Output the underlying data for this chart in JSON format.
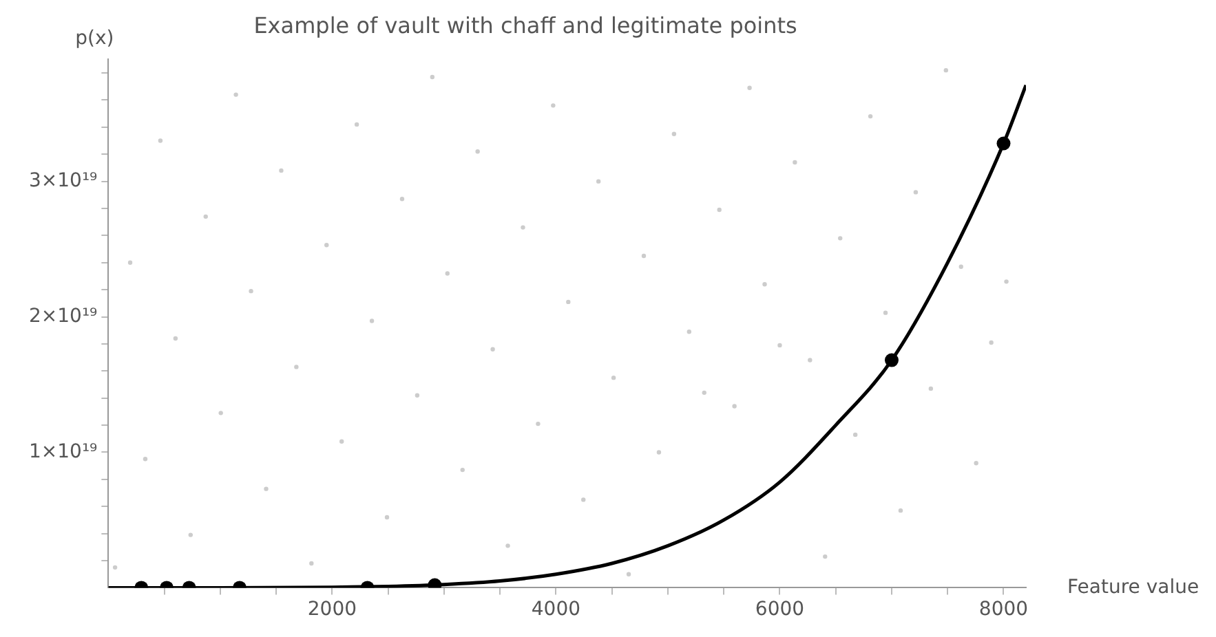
{
  "chart_data": {
    "type": "scatter",
    "title": "Example of vault with chaff and legitimate points",
    "xlabel": "Feature value",
    "ylabel": "p(x)",
    "xlim": [
      0,
      8200
    ],
    "ylim": [
      0,
      3.9e+19
    ],
    "xticks": [
      {
        "value": 500,
        "label": null
      },
      {
        "value": 1000,
        "label": null
      },
      {
        "value": 1500,
        "label": null
      },
      2000,
      {
        "value": 2500,
        "label": null
      },
      {
        "value": 3000,
        "label": null
      },
      {
        "value": 3500,
        "label": null
      },
      4000,
      {
        "value": 4500,
        "label": null
      },
      {
        "value": 5000,
        "label": null
      },
      {
        "value": 5500,
        "label": null
      },
      6000,
      {
        "value": 6500,
        "label": null
      },
      {
        "value": 7000,
        "label": null
      },
      {
        "value": 7500,
        "label": null
      },
      8000
    ],
    "yticks": [
      {
        "value": 2e+18,
        "label": null
      },
      {
        "value": 4e+18,
        "label": null
      },
      {
        "value": 6e+18,
        "label": null
      },
      {
        "value": 8e+18,
        "label": null
      },
      {
        "value": 1e+19,
        "label": "1×10¹⁹"
      },
      {
        "value": 1.2e+19,
        "label": null
      },
      {
        "value": 1.4e+19,
        "label": null
      },
      {
        "value": 1.6e+19,
        "label": null
      },
      {
        "value": 1.8e+19,
        "label": null
      },
      {
        "value": 2e+19,
        "label": "2×10¹⁹"
      },
      {
        "value": 2.2e+19,
        "label": null
      },
      {
        "value": 2.4e+19,
        "label": null
      },
      {
        "value": 2.6e+19,
        "label": null
      },
      {
        "value": 2.8e+19,
        "label": null
      },
      {
        "value": 3e+19,
        "label": "3×10¹⁹"
      },
      {
        "value": 3.2e+19,
        "label": null
      },
      {
        "value": 3.4e+19,
        "label": null
      },
      {
        "value": 3.6e+19,
        "label": null
      },
      {
        "value": 3.8e+19,
        "label": null
      }
    ],
    "grid": false,
    "legend": false,
    "series": [
      {
        "marker": "circle",
        "color": "#cccccc",
        "x": [
          60,
          195,
          330,
          465,
          600,
          735,
          870,
          1005,
          1140,
          1275,
          1410,
          1545,
          1680,
          1815,
          1950,
          2085,
          2220,
          2355,
          2490,
          2625,
          2760,
          2895,
          3030,
          3165,
          3300,
          3435,
          3570,
          3705,
          3840,
          3975,
          4110,
          4245,
          4380,
          4515,
          4650,
          4785,
          4920,
          5055,
          5190,
          5325,
          5460,
          5595,
          5730,
          5865,
          6000,
          6135,
          6270,
          6405,
          6540,
          6675,
          6810,
          6945,
          7080,
          7215,
          7350,
          7485,
          7620,
          7755,
          7890,
          8025
        ],
        "values": [
          1.5e+18,
          2.4e+19,
          9.5e+18,
          3.3e+19,
          1.84e+19,
          3.9e+18,
          2.74e+19,
          1.29e+19,
          3.64e+19,
          2.19e+19,
          7.3e+18,
          3.08e+19,
          1.63e+19,
          1.8e+18,
          2.53e+19,
          1.08e+19,
          3.42e+19,
          1.97e+19,
          5.2e+18,
          2.87e+19,
          1.42e+19,
          3.77e+19,
          2.32e+19,
          8.7e+18,
          3.22e+19,
          1.76e+19,
          3.1e+18,
          2.66e+19,
          1.21e+19,
          3.56e+19,
          2.11e+19,
          6.5e+18,
          3e+19,
          1.55e+19,
          1e+18,
          2.45e+19,
          1e+19,
          3.35e+19,
          1.89e+19,
          1.44e+19,
          2.79e+19,
          1.34e+19,
          3.69e+19,
          2.24e+19,
          1.79e+19,
          3.14e+19,
          1.68e+19,
          2.3e+18,
          2.58e+19,
          1.13e+19,
          3.48e+19,
          2.03e+19,
          5.7e+18,
          2.92e+19,
          1.47e+19,
          3.82e+19,
          2.37e+19,
          9.2e+18,
          1.81e+19,
          2.26e+19
        ]
      },
      {
        "type": "line",
        "marker": "none",
        "color": "#000000",
        "x": [
          0,
          1000,
          2000,
          2500,
          3000,
          3500,
          4000,
          4500,
          5000,
          5500,
          6000,
          6500,
          7000,
          7500,
          8000,
          8200
        ],
        "values": [
          0,
          0,
          3e+16,
          1e+17,
          2.4e+17,
          5e+17,
          1e+18,
          1.8e+18,
          3.1e+18,
          5e+18,
          7.8e+18,
          1.2e+19,
          1.68e+19,
          2.4e+19,
          3.28e+19,
          3.71e+19
        ]
      },
      {
        "marker": "circle",
        "color": "#000000",
        "x": [
          295,
          521,
          722,
          1173,
          2315,
          2917,
          7000,
          8000
        ],
        "values": [
          0,
          0,
          0,
          0,
          0,
          2e+17,
          1.68e+19,
          3.28e+19
        ]
      }
    ]
  }
}
